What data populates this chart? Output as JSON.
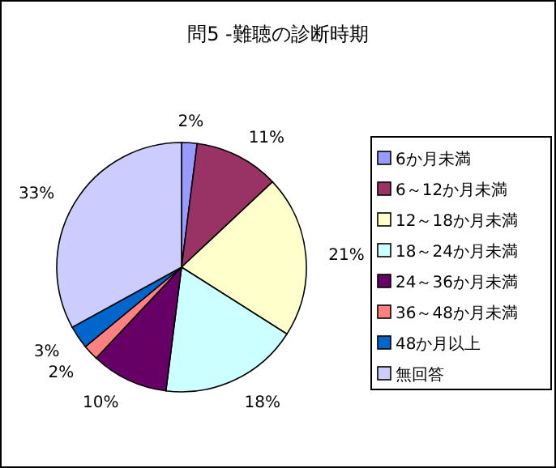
{
  "chart_data": {
    "type": "pie",
    "title": "問5 -難聴の診断時期",
    "categories": [
      "6か月未満",
      "6～12か月未満",
      "12～18か月未満",
      "18～24か月未満",
      "24～36か月未満",
      "36～48か月未満",
      "48か月以上",
      "無回答"
    ],
    "values": [
      2,
      11,
      21,
      18,
      10,
      2,
      3,
      33
    ],
    "value_labels": [
      "2%",
      "11%",
      "21%",
      "18%",
      "10%",
      "2%",
      "3%",
      "33%"
    ],
    "colors": [
      "#9999ff",
      "#993366",
      "#ffffcc",
      "#ccffff",
      "#660066",
      "#ff8080",
      "#0066cc",
      "#ccccff"
    ],
    "legend": "right"
  }
}
